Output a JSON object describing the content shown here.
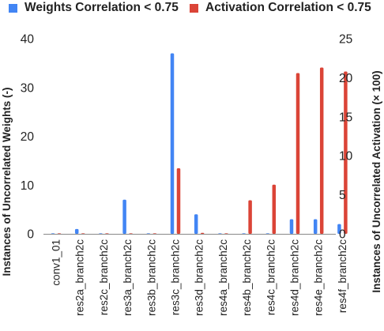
{
  "chart_data": {
    "type": "bar",
    "categories": [
      "conv1_01",
      "res2a_branch2c",
      "res2c_branch2c",
      "res3a_branch2c",
      "res3b_branch2c",
      "res3c_branch2c",
      "res3d_branch2c",
      "res4a_branch2c",
      "res4b_branch2c",
      "res4c_branch2c",
      "res4d_branch2c",
      "res4e_branch2c",
      "res4f_branch2c"
    ],
    "series": [
      {
        "name": "Weights Correlation < 0.75",
        "axis": "left",
        "color": "#4285f4",
        "values": [
          0,
          1,
          0,
          7,
          0,
          37,
          4,
          0,
          0,
          0,
          3,
          3,
          2
        ]
      },
      {
        "name": "Activation Correlation < 0.75",
        "axis": "right",
        "color": "#db4437",
        "values": [
          0,
          0,
          0,
          0,
          0,
          8.4,
          0.1,
          0,
          4.3,
          6.3,
          20.6,
          21.3,
          20.8
        ]
      }
    ],
    "ylabel": "Instances of Uncorrelated Weights (-)",
    "y2label": "Instances of Uncorrelated Activation (× 100)",
    "ylim": [
      0,
      40
    ],
    "y2lim": [
      0,
      25
    ],
    "yticks": [
      "0",
      "10",
      "20",
      "30",
      "40"
    ],
    "y2ticks": [
      "0",
      "5",
      "10",
      "15",
      "20",
      "25"
    ],
    "legend_position": "top",
    "grid": false
  }
}
